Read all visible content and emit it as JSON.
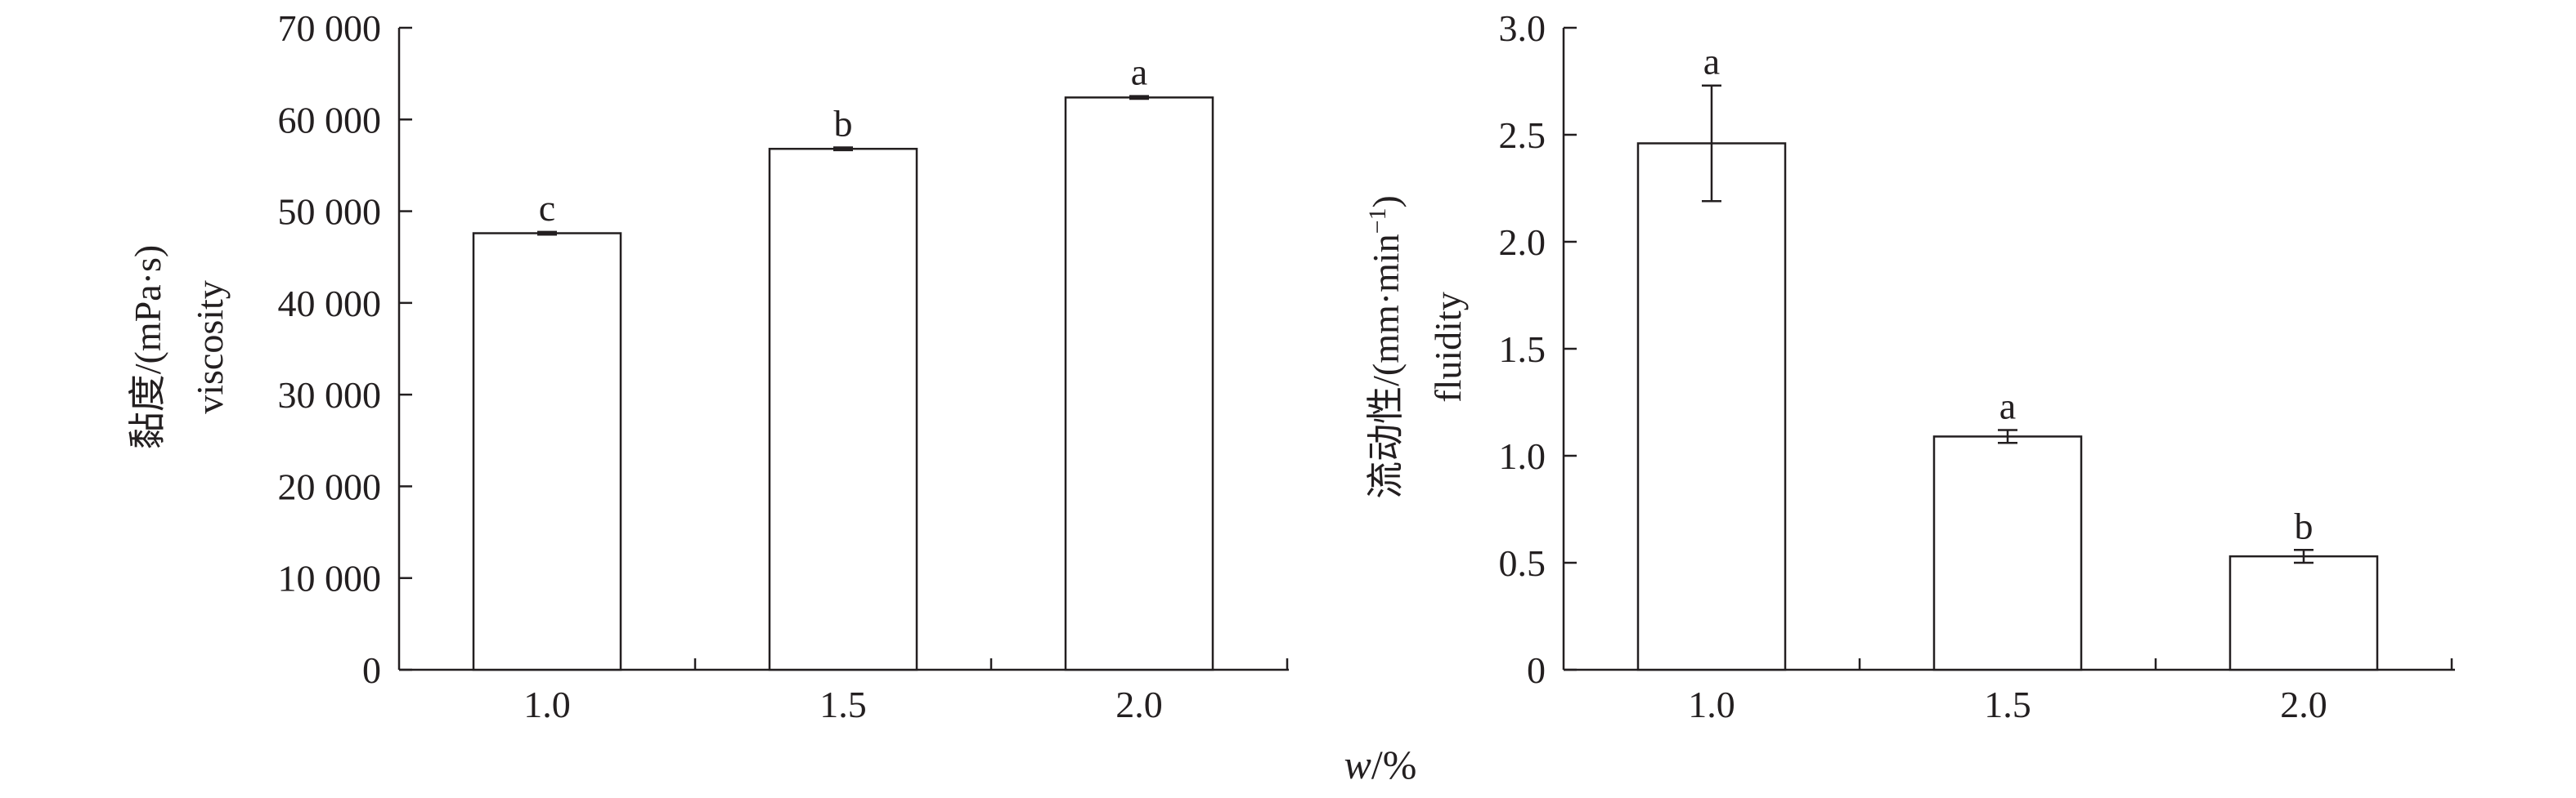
{
  "shared_xlabel": {
    "italic": "w",
    "rest": "/%"
  },
  "chart_data": [
    {
      "type": "bar",
      "categories": [
        "1.0",
        "1.5",
        "2.0"
      ],
      "values": [
        47600,
        56800,
        62400
      ],
      "errors": [
        150,
        150,
        150
      ],
      "letters": [
        "c",
        "b",
        "a"
      ],
      "ylabel_cn": "黏度/(mPa·s)",
      "ylabel_en": "viscosity",
      "ylim": [
        0,
        70000
      ],
      "yticks": [
        0,
        10000,
        20000,
        30000,
        40000,
        50000,
        60000,
        70000
      ],
      "ytick_labels": [
        "0",
        "10 000",
        "20 000",
        "30 000",
        "40 000",
        "50 000",
        "60 000",
        "70 000"
      ],
      "bar_fill": "#ffffff",
      "stroke": "#231f20",
      "grid": false
    },
    {
      "type": "bar",
      "categories": [
        "1.0",
        "1.5",
        "2.0"
      ],
      "values": [
        2.46,
        1.09,
        0.53
      ],
      "errors": [
        0.27,
        0.03,
        0.03
      ],
      "letters": [
        "a",
        "a",
        "b"
      ],
      "ylabel_cn": "流动性/(mm·min",
      "ylabel_sup": "−1",
      "ylabel_close": ")",
      "ylabel_en": "fluidity",
      "ylim": [
        0,
        3.0
      ],
      "yticks": [
        0,
        0.5,
        1.0,
        1.5,
        2.0,
        2.5,
        3.0
      ],
      "ytick_labels": [
        "0",
        "0.5",
        "1.0",
        "1.5",
        "2.0",
        "2.5",
        "3.0"
      ],
      "bar_fill": "#ffffff",
      "stroke": "#231f20",
      "grid": false
    }
  ]
}
